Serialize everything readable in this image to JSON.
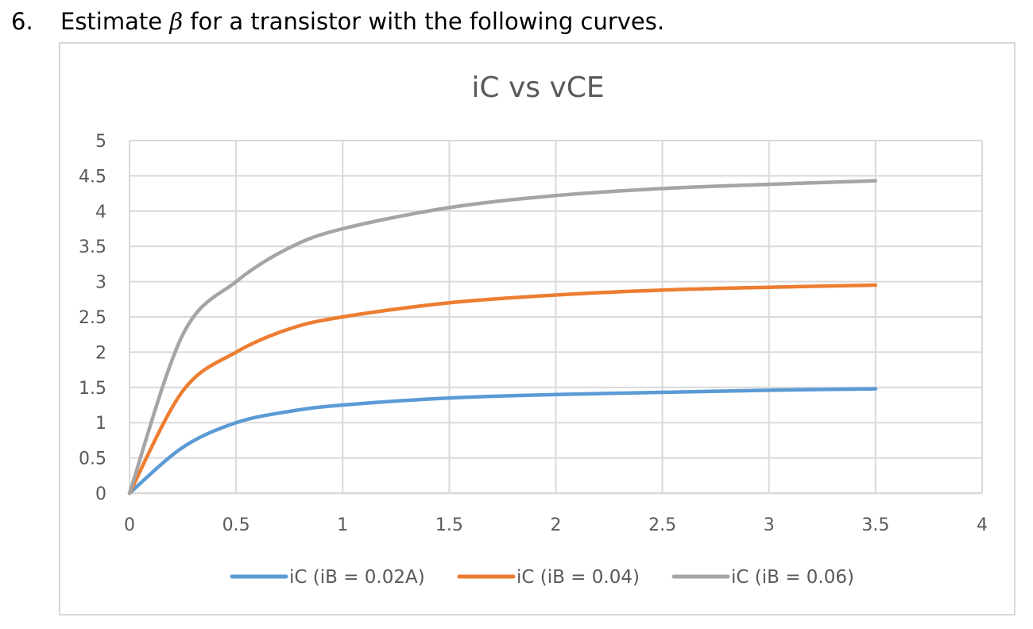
{
  "question": {
    "number": "6.",
    "text_before": "Estimate ",
    "symbol": "β",
    "text_after": " for a transistor with the following curves."
  },
  "chart_data": {
    "type": "line",
    "title": "iC vs vCE",
    "xlabel": "",
    "ylabel": "",
    "xlim": [
      0,
      4
    ],
    "ylim": [
      0,
      5
    ],
    "x_ticks": [
      "0",
      "0.5",
      "1",
      "1.5",
      "2",
      "2.5",
      "3",
      "3.5",
      "4"
    ],
    "y_ticks": [
      "0",
      "0.5",
      "1",
      "1.5",
      "2",
      "2.5",
      "3",
      "3.5",
      "4",
      "4.5",
      "5"
    ],
    "grid": true,
    "legend_position": "bottom",
    "x": [
      0,
      0.25,
      0.5,
      0.75,
      1,
      1.5,
      2,
      2.5,
      3,
      3.5
    ],
    "series": [
      {
        "name": "iC (iB = 0.02A)",
        "color": "#5b9bd5",
        "values": [
          0,
          0.65,
          1.0,
          1.16,
          1.25,
          1.35,
          1.4,
          1.43,
          1.46,
          1.48
        ]
      },
      {
        "name": "iC (iB = 0.04)",
        "color": "#ed7d31",
        "values": [
          0,
          1.45,
          2.0,
          2.33,
          2.5,
          2.7,
          2.81,
          2.88,
          2.92,
          2.95
        ]
      },
      {
        "name": "iC (iB = 0.06)",
        "color": "#a5a5a5",
        "values": [
          0,
          2.25,
          3.0,
          3.48,
          3.75,
          4.05,
          4.22,
          4.32,
          4.38,
          4.43
        ]
      }
    ]
  }
}
